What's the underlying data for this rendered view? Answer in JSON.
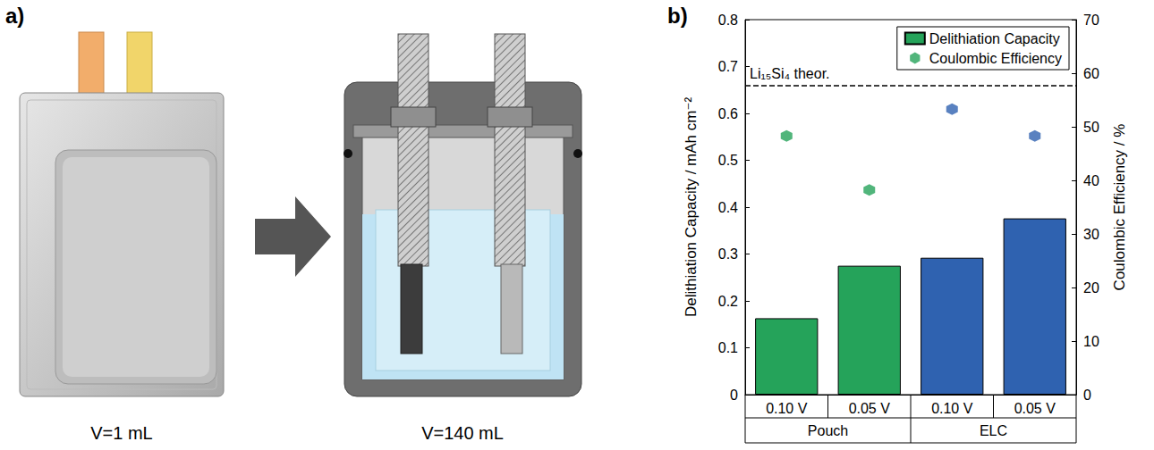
{
  "panels": {
    "a": {
      "letter": "a)",
      "labels": [
        "V=1 mL",
        "V=140 mL"
      ]
    },
    "b": {
      "letter": "b)"
    }
  },
  "chart_data": {
    "type": "bar",
    "categories": [
      "0.10 V",
      "0.05 V",
      "0.10 V",
      "0.05 V"
    ],
    "groups": [
      "Pouch",
      "Pouch",
      "ELC",
      "ELC"
    ],
    "y_label": "Delithiation Capacity / mAh cm⁻²",
    "y2_label": "Coulombic Efficiency / %",
    "ylim": [
      0,
      0.8
    ],
    "yticks": [
      0,
      0.1,
      0.2,
      0.3,
      0.4,
      0.5,
      0.6,
      0.7,
      0.8
    ],
    "y2lim": [
      0,
      70
    ],
    "y2ticks": [
      0,
      10,
      20,
      30,
      40,
      50,
      60,
      70
    ],
    "series": [
      {
        "name": "Delithiation Capacity",
        "type": "bar",
        "color": "#25a35a",
        "colors": [
          "#25a35a",
          "#25a35a",
          "#2f62b0",
          "#2f62b0"
        ],
        "values": [
          0.163,
          0.275,
          0.292,
          0.376
        ]
      },
      {
        "name": "Coulombic Efficiency",
        "type": "scatter",
        "axis": "y2",
        "marker": "hexagon",
        "color": "#25a35a",
        "colors": [
          "#25a35a",
          "#25a35a",
          "#2f62b0",
          "#2f62b0"
        ],
        "values": [
          48.3,
          38.2,
          53.3,
          48.3
        ]
      }
    ],
    "reference_lines": [
      {
        "value": 0.66,
        "label": "Li₁₅Si₄ theor.",
        "line_style": "dashed"
      }
    ],
    "legend": "upper right",
    "grid": false
  }
}
